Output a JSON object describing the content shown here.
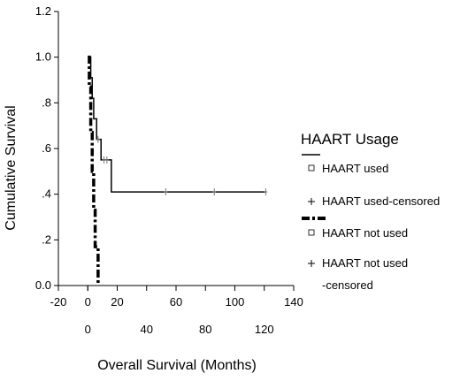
{
  "chart_data": {
    "type": "line",
    "subtype": "kaplan-meier",
    "xlabel": "Overall Survival (Months)",
    "ylabel": "Cumulative Survival",
    "xlim": [
      -20,
      140
    ],
    "ylim": [
      0,
      1.2
    ],
    "x_ticks_top": [
      "-20",
      "0",
      "20",
      "60",
      "100",
      "140"
    ],
    "x_ticks_top_values": [
      -20,
      0,
      20,
      60,
      100,
      140
    ],
    "x_ticks_bottom": [
      "0",
      "40",
      "80",
      "120"
    ],
    "x_ticks_bottom_values": [
      0,
      40,
      80,
      120
    ],
    "y_ticks": [
      "0.0",
      ".2",
      ".4",
      ".6",
      ".8",
      "1.0",
      "1.2"
    ],
    "y_ticks_values": [
      0,
      0.2,
      0.4,
      0.6,
      0.8,
      1.0,
      1.2
    ],
    "grid": false,
    "legend": {
      "title": "HAART Usage",
      "position": "right",
      "entries": [
        {
          "label": "HAART used",
          "marker": "square"
        },
        {
          "label": "HAART used-censored",
          "marker": "plus"
        },
        {
          "label": "HAART not used",
          "marker": "square"
        },
        {
          "label": "HAART not used",
          "label_cont": "-censored",
          "marker": "plus"
        }
      ]
    },
    "series": [
      {
        "style": "solid",
        "color": "#000000",
        "steps": [
          [
            0,
            1.0
          ],
          [
            2,
            0.91
          ],
          [
            3,
            0.82
          ],
          [
            4,
            0.73
          ],
          [
            6,
            0.64
          ],
          [
            9,
            0.55
          ],
          [
            16,
            0.41
          ],
          [
            121,
            0.41
          ]
        ],
        "censored": [
          [
            7,
            0.64
          ],
          [
            11,
            0.55
          ],
          [
            13,
            0.55
          ],
          [
            53,
            0.41
          ],
          [
            86,
            0.41
          ],
          [
            121,
            0.41
          ]
        ]
      },
      {
        "style": "dashdot",
        "color": "#000000",
        "steps": [
          [
            0,
            1.0
          ],
          [
            1,
            0.87
          ],
          [
            2,
            0.67
          ],
          [
            3,
            0.5
          ],
          [
            4,
            0.33
          ],
          [
            5,
            0.17
          ],
          [
            7,
            0.0
          ]
        ],
        "censored": []
      }
    ]
  }
}
